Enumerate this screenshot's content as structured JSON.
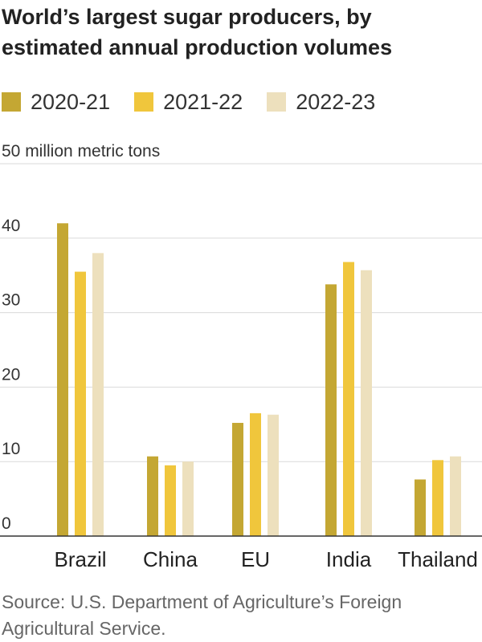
{
  "title": "World’s largest sugar producers, by estimated annual production volumes",
  "source": "Source: U.S. Department of Agriculture’s Foreign Agricultural Service.",
  "legend": [
    {
      "label": "2020-21",
      "color": "#c4a733"
    },
    {
      "label": "2021-22",
      "color": "#f0c63c"
    },
    {
      "label": "2022-23",
      "color": "#ede0bd"
    }
  ],
  "chart_data": {
    "type": "bar",
    "title": "World’s largest sugar producers, by estimated annual production volumes",
    "ylabel": "50 million metric tons",
    "ylim": [
      0,
      50
    ],
    "yticks": [
      0,
      10,
      20,
      30,
      40,
      50
    ],
    "ytick_labels": [
      "0",
      "10",
      "20",
      "30",
      "40",
      "50 million metric tons"
    ],
    "grid": true,
    "legend_position": "top-left",
    "categories": [
      "Brazil",
      "China",
      "EU",
      "India",
      "Thailand"
    ],
    "series": [
      {
        "name": "2020-21",
        "color": "#c4a733",
        "values": [
          42.0,
          10.7,
          15.2,
          33.8,
          7.6
        ]
      },
      {
        "name": "2021-22",
        "color": "#f0c63c",
        "values": [
          35.5,
          9.5,
          16.5,
          36.8,
          10.2
        ]
      },
      {
        "name": "2022-23",
        "color": "#ede0bd",
        "values": [
          38.0,
          10.0,
          16.3,
          35.7,
          10.7
        ]
      }
    ]
  }
}
